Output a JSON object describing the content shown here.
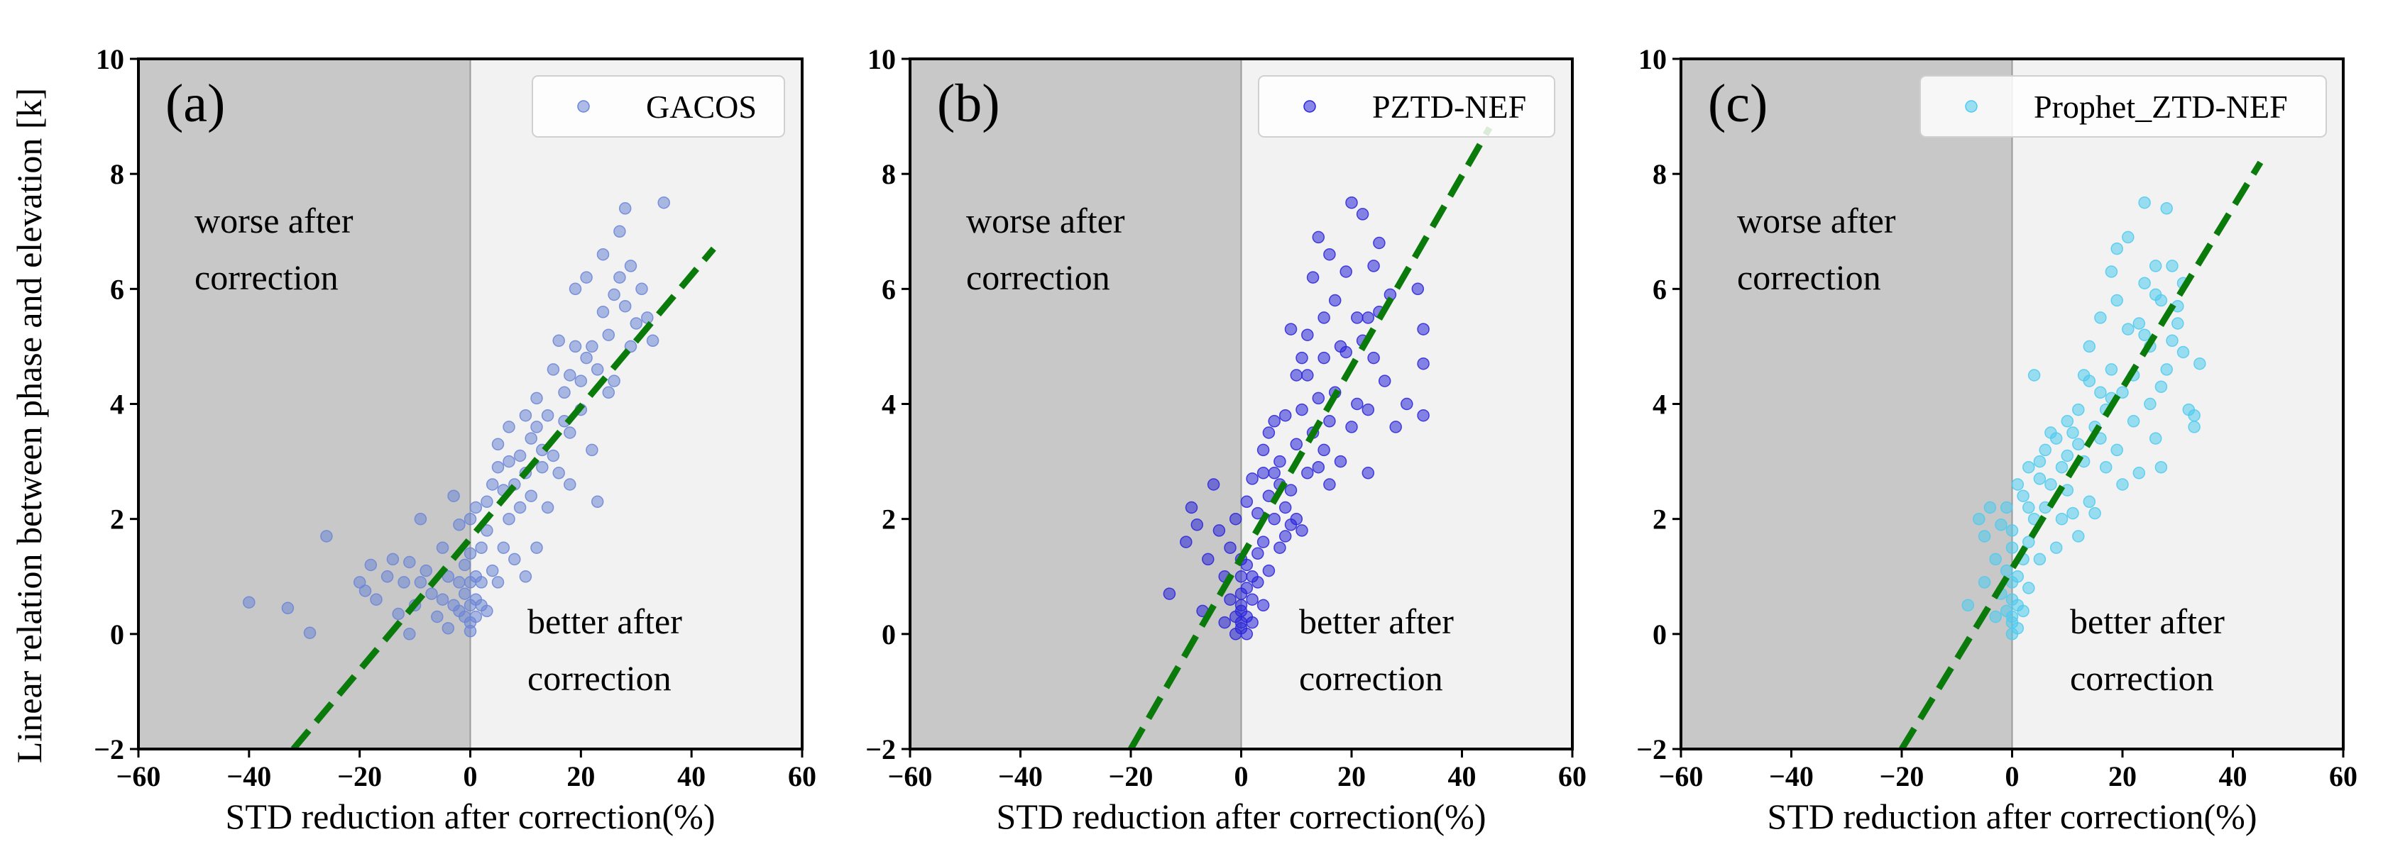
{
  "figure": {
    "ylabel": "Linear relation between phase and elevation [k]"
  },
  "chart_data": [
    {
      "type": "scatter",
      "panel_label": "(a)",
      "legend": "GACOS",
      "xlabel": "STD reduction after correction(%)",
      "ylabel": "Linear relation between phase and elevation [k]",
      "xlim": [
        -60,
        60
      ],
      "ylim": [
        -2,
        10
      ],
      "xticks": [
        -60,
        -40,
        -20,
        0,
        20,
        40,
        60
      ],
      "yticks": [
        -2,
        0,
        2,
        4,
        6,
        8,
        10
      ],
      "xtick_labels": [
        "−60",
        "−40",
        "−20",
        "0",
        "20",
        "40",
        "60"
      ],
      "ytick_labels": [
        "−2",
        "0",
        "2",
        "4",
        "6",
        "8",
        "10"
      ],
      "region_left": [
        "worse after",
        "correction"
      ],
      "region_right": [
        "better after",
        "correction"
      ],
      "point_color": "#6b85d6",
      "line_color": "#0a7a0a",
      "fit_line": {
        "x": [
          -32,
          44
        ],
        "y": [
          -2,
          6.7
        ]
      },
      "points": [
        [
          -40,
          0.55
        ],
        [
          -33,
          0.45
        ],
        [
          -29,
          0.02
        ],
        [
          -26,
          1.7
        ],
        [
          -20,
          0.9
        ],
        [
          -19,
          0.75
        ],
        [
          -18,
          1.2
        ],
        [
          -17,
          0.6
        ],
        [
          -15,
          1.0
        ],
        [
          -14,
          1.3
        ],
        [
          -13,
          0.35
        ],
        [
          -12,
          0.9
        ],
        [
          -11,
          0.0
        ],
        [
          -11,
          1.25
        ],
        [
          -10,
          0.5
        ],
        [
          -9,
          2.0
        ],
        [
          -9,
          0.9
        ],
        [
          -8,
          1.1
        ],
        [
          -7,
          0.7
        ],
        [
          -6,
          0.3
        ],
        [
          -5,
          1.5
        ],
        [
          -5,
          0.6
        ],
        [
          -4,
          1.0
        ],
        [
          -4,
          0.1
        ],
        [
          -3,
          2.4
        ],
        [
          -3,
          0.5
        ],
        [
          -2,
          1.9
        ],
        [
          -2,
          0.9
        ],
        [
          -2,
          0.4
        ],
        [
          -1,
          1.2
        ],
        [
          -1,
          0.7
        ],
        [
          -1,
          0.3
        ],
        [
          0,
          0.05
        ],
        [
          0,
          0.5
        ],
        [
          0,
          0.9
        ],
        [
          0,
          1.4
        ],
        [
          0,
          2.0
        ],
        [
          0,
          0.2
        ],
        [
          1,
          0.6
        ],
        [
          1,
          1.0
        ],
        [
          1,
          0.3
        ],
        [
          1,
          2.2
        ],
        [
          2,
          1.5
        ],
        [
          2,
          0.5
        ],
        [
          2,
          0.9
        ],
        [
          3,
          1.8
        ],
        [
          3,
          2.3
        ],
        [
          3,
          0.4
        ],
        [
          4,
          2.6
        ],
        [
          4,
          1.1
        ],
        [
          5,
          0.9
        ],
        [
          5,
          2.9
        ],
        [
          5,
          3.3
        ],
        [
          6,
          1.5
        ],
        [
          6,
          2.5
        ],
        [
          7,
          2.0
        ],
        [
          7,
          3.0
        ],
        [
          7,
          3.6
        ],
        [
          8,
          2.6
        ],
        [
          8,
          1.3
        ],
        [
          9,
          3.1
        ],
        [
          9,
          2.2
        ],
        [
          10,
          3.8
        ],
        [
          10,
          2.8
        ],
        [
          10,
          1.0
        ],
        [
          11,
          3.4
        ],
        [
          11,
          2.4
        ],
        [
          12,
          3.6
        ],
        [
          12,
          4.1
        ],
        [
          12,
          1.5
        ],
        [
          13,
          2.9
        ],
        [
          13,
          3.2
        ],
        [
          14,
          3.8
        ],
        [
          14,
          2.2
        ],
        [
          15,
          4.6
        ],
        [
          15,
          3.1
        ],
        [
          16,
          5.1
        ],
        [
          16,
          2.8
        ],
        [
          17,
          3.7
        ],
        [
          17,
          4.2
        ],
        [
          18,
          4.5
        ],
        [
          18,
          3.5
        ],
        [
          18,
          2.6
        ],
        [
          19,
          5.0
        ],
        [
          19,
          6.0
        ],
        [
          20,
          4.4
        ],
        [
          20,
          3.9
        ],
        [
          21,
          6.2
        ],
        [
          21,
          4.8
        ],
        [
          22,
          5.0
        ],
        [
          22,
          3.2
        ],
        [
          23,
          2.3
        ],
        [
          23,
          4.6
        ],
        [
          24,
          5.6
        ],
        [
          24,
          6.6
        ],
        [
          25,
          4.2
        ],
        [
          25,
          5.2
        ],
        [
          26,
          5.9
        ],
        [
          26,
          4.4
        ],
        [
          27,
          7.0
        ],
        [
          27,
          6.2
        ],
        [
          28,
          7.4
        ],
        [
          28,
          5.7
        ],
        [
          29,
          6.4
        ],
        [
          29,
          5.0
        ],
        [
          30,
          5.4
        ],
        [
          31,
          6.0
        ],
        [
          32,
          5.5
        ],
        [
          33,
          5.1
        ],
        [
          35,
          7.5
        ]
      ]
    },
    {
      "type": "scatter",
      "panel_label": "(b)",
      "legend": "PZTD-NEF",
      "xlabel": "STD reduction after correction(%)",
      "ylabel": "",
      "xlim": [
        -60,
        60
      ],
      "ylim": [
        -2,
        10
      ],
      "xticks": [
        -60,
        -40,
        -20,
        0,
        20,
        40,
        60
      ],
      "yticks": [
        -2,
        0,
        2,
        4,
        6,
        8,
        10
      ],
      "xtick_labels": [
        "−60",
        "−40",
        "−20",
        "0",
        "20",
        "40",
        "60"
      ],
      "ytick_labels": [
        "−2",
        "0",
        "2",
        "4",
        "6",
        "8",
        "10"
      ],
      "region_left": [
        "worse after",
        "correction"
      ],
      "region_right": [
        "better after",
        "correction"
      ],
      "point_color": "#2a24d8",
      "line_color": "#0a7a0a",
      "fit_line": {
        "x": [
          -20,
          45
        ],
        "y": [
          -2,
          8.8
        ]
      },
      "points": [
        [
          -13,
          0.7
        ],
        [
          -10,
          1.6
        ],
        [
          -9,
          2.2
        ],
        [
          -8,
          1.9
        ],
        [
          -7,
          0.4
        ],
        [
          -6,
          1.3
        ],
        [
          -5,
          2.6
        ],
        [
          -4,
          1.8
        ],
        [
          -3,
          1.0
        ],
        [
          -3,
          0.2
        ],
        [
          -2,
          0.6
        ],
        [
          -2,
          1.5
        ],
        [
          -1,
          0.3
        ],
        [
          -1,
          0.0
        ],
        [
          -1,
          2.0
        ],
        [
          0,
          0.2
        ],
        [
          0,
          0.5
        ],
        [
          0,
          0.7
        ],
        [
          0,
          1.0
        ],
        [
          0,
          1.3
        ],
        [
          0,
          0.1
        ],
        [
          0,
          0.4
        ],
        [
          1,
          0.3
        ],
        [
          1,
          0.8
        ],
        [
          1,
          1.2
        ],
        [
          1,
          2.3
        ],
        [
          1,
          0.0
        ],
        [
          2,
          0.6
        ],
        [
          2,
          1.0
        ],
        [
          2,
          2.7
        ],
        [
          2,
          0.2
        ],
        [
          3,
          1.4
        ],
        [
          3,
          0.9
        ],
        [
          3,
          2.1
        ],
        [
          4,
          1.6
        ],
        [
          4,
          3.2
        ],
        [
          4,
          0.5
        ],
        [
          5,
          2.4
        ],
        [
          5,
          1.1
        ],
        [
          5,
          3.5
        ],
        [
          6,
          2.0
        ],
        [
          6,
          2.8
        ],
        [
          7,
          1.5
        ],
        [
          7,
          3.0
        ],
        [
          8,
          2.2
        ],
        [
          8,
          3.8
        ],
        [
          8,
          1.7
        ],
        [
          9,
          2.5
        ],
        [
          9,
          1.9
        ],
        [
          10,
          3.3
        ],
        [
          10,
          2.0
        ],
        [
          10,
          4.5
        ],
        [
          11,
          1.8
        ],
        [
          11,
          3.9
        ],
        [
          12,
          2.8
        ],
        [
          12,
          5.2
        ],
        [
          12,
          4.5
        ],
        [
          13,
          3.5
        ],
        [
          13,
          6.2
        ],
        [
          14,
          2.9
        ],
        [
          14,
          4.1
        ],
        [
          14,
          6.9
        ],
        [
          15,
          3.2
        ],
        [
          15,
          5.5
        ],
        [
          15,
          4.8
        ],
        [
          16,
          6.6
        ],
        [
          16,
          3.7
        ],
        [
          16,
          2.6
        ],
        [
          17,
          5.8
        ],
        [
          17,
          4.2
        ],
        [
          18,
          5.0
        ],
        [
          18,
          3.0
        ],
        [
          19,
          6.3
        ],
        [
          19,
          4.9
        ],
        [
          20,
          7.5
        ],
        [
          20,
          3.6
        ],
        [
          21,
          5.5
        ],
        [
          21,
          4.0
        ],
        [
          22,
          7.3
        ],
        [
          22,
          5.1
        ],
        [
          23,
          3.9
        ],
        [
          23,
          2.8
        ],
        [
          24,
          6.4
        ],
        [
          24,
          4.8
        ],
        [
          25,
          5.6
        ],
        [
          28,
          3.6
        ],
        [
          30,
          4.0
        ],
        [
          32,
          6.0
        ],
        [
          33,
          4.7
        ],
        [
          33,
          5.3
        ],
        [
          33,
          3.8
        ],
        [
          27,
          5.9
        ],
        [
          26,
          4.4
        ],
        [
          25,
          6.8
        ],
        [
          23,
          5.5
        ],
        [
          11,
          4.8
        ],
        [
          9,
          5.3
        ],
        [
          7,
          2.6
        ],
        [
          6,
          3.7
        ],
        [
          4,
          2.8
        ]
      ]
    },
    {
      "type": "scatter",
      "panel_label": "(c)",
      "legend": "Prophet_ZTD-NEF",
      "xlabel": "STD reduction after correction(%)",
      "ylabel": "",
      "xlim": [
        -60,
        60
      ],
      "ylim": [
        -2,
        10
      ],
      "xticks": [
        -60,
        -40,
        -20,
        0,
        20,
        40,
        60
      ],
      "yticks": [
        -2,
        0,
        2,
        4,
        6,
        8,
        10
      ],
      "xtick_labels": [
        "−60",
        "−40",
        "−20",
        "0",
        "20",
        "40",
        "60"
      ],
      "ytick_labels": [
        "−2",
        "0",
        "2",
        "4",
        "6",
        "8",
        "10"
      ],
      "region_left": [
        "worse after",
        "correction"
      ],
      "region_right": [
        "better after",
        "correction"
      ],
      "point_color": "#4fcaef",
      "line_color": "#0a7a0a",
      "fit_line": {
        "x": [
          -20,
          45
        ],
        "y": [
          -2,
          8.2
        ]
      },
      "points": [
        [
          -8,
          0.5
        ],
        [
          -6,
          2.0
        ],
        [
          -5,
          1.7
        ],
        [
          -5,
          0.9
        ],
        [
          -4,
          2.2
        ],
        [
          -3,
          1.3
        ],
        [
          -3,
          0.3
        ],
        [
          -2,
          1.9
        ],
        [
          -2,
          0.7
        ],
        [
          -1,
          2.2
        ],
        [
          -1,
          0.4
        ],
        [
          -1,
          1.1
        ],
        [
          0,
          0.0
        ],
        [
          0,
          0.3
        ],
        [
          0,
          0.6
        ],
        [
          0,
          0.9
        ],
        [
          0,
          1.5
        ],
        [
          0,
          1.8
        ],
        [
          0,
          0.2
        ],
        [
          1,
          0.5
        ],
        [
          1,
          1.0
        ],
        [
          1,
          0.1
        ],
        [
          1,
          2.6
        ],
        [
          2,
          0.4
        ],
        [
          2,
          1.3
        ],
        [
          2,
          2.4
        ],
        [
          3,
          0.8
        ],
        [
          3,
          2.9
        ],
        [
          3,
          1.6
        ],
        [
          4,
          2.0
        ],
        [
          4,
          4.5
        ],
        [
          5,
          2.7
        ],
        [
          5,
          1.3
        ],
        [
          6,
          3.2
        ],
        [
          6,
          2.2
        ],
        [
          7,
          2.6
        ],
        [
          8,
          1.5
        ],
        [
          8,
          3.4
        ],
        [
          9,
          2.9
        ],
        [
          9,
          2.0
        ],
        [
          10,
          3.7
        ],
        [
          10,
          2.5
        ],
        [
          11,
          2.1
        ],
        [
          11,
          3.5
        ],
        [
          12,
          1.7
        ],
        [
          12,
          3.9
        ],
        [
          13,
          3.0
        ],
        [
          13,
          4.5
        ],
        [
          14,
          2.3
        ],
        [
          14,
          5.0
        ],
        [
          15,
          3.6
        ],
        [
          15,
          2.1
        ],
        [
          16,
          4.2
        ],
        [
          16,
          5.5
        ],
        [
          17,
          2.9
        ],
        [
          17,
          3.9
        ],
        [
          18,
          4.6
        ],
        [
          18,
          6.3
        ],
        [
          19,
          3.2
        ],
        [
          19,
          5.8
        ],
        [
          20,
          2.6
        ],
        [
          20,
          4.2
        ],
        [
          21,
          6.9
        ],
        [
          21,
          5.3
        ],
        [
          22,
          3.7
        ],
        [
          22,
          4.5
        ],
        [
          23,
          5.4
        ],
        [
          23,
          2.8
        ],
        [
          24,
          7.5
        ],
        [
          24,
          6.1
        ],
        [
          25,
          4.0
        ],
        [
          25,
          5.0
        ],
        [
          26,
          6.4
        ],
        [
          26,
          3.4
        ],
        [
          27,
          5.8
        ],
        [
          27,
          2.9
        ],
        [
          28,
          7.4
        ],
        [
          28,
          4.6
        ],
        [
          29,
          6.4
        ],
        [
          29,
          5.1
        ],
        [
          30,
          5.4
        ],
        [
          31,
          4.9
        ],
        [
          32,
          3.9
        ],
        [
          33,
          3.8
        ],
        [
          33,
          3.6
        ],
        [
          34,
          4.7
        ],
        [
          31,
          6.1
        ],
        [
          30,
          5.7
        ],
        [
          27,
          4.3
        ],
        [
          26,
          5.9
        ],
        [
          24,
          5.2
        ],
        [
          19,
          6.7
        ],
        [
          18,
          4.1
        ],
        [
          16,
          3.4
        ],
        [
          14,
          4.4
        ],
        [
          12,
          3.3
        ],
        [
          10,
          3.1
        ],
        [
          7,
          3.5
        ],
        [
          5,
          3.0
        ],
        [
          3,
          2.2
        ]
      ]
    }
  ]
}
